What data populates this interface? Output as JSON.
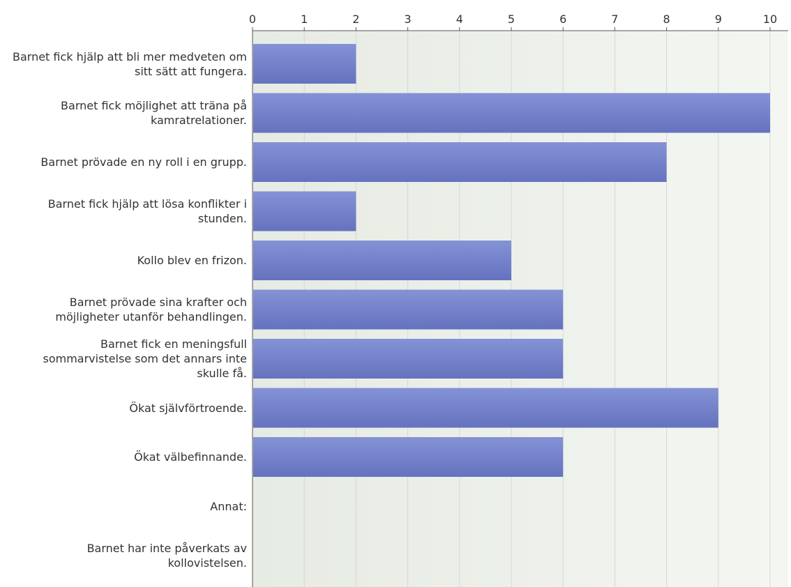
{
  "chart_data": {
    "type": "bar",
    "orientation": "horizontal",
    "categories": [
      "Barnet fick hjälp att bli mer medveten om sitt sätt att fungera.",
      "Barnet fick möjlighet att träna på kamratrelationer.",
      "Barnet prövade en ny roll i en grupp.",
      "Barnet fick hjälp att lösa konflikter i stunden.",
      "Kollo blev en frizon.",
      "Barnet prövade sina krafter och möjligheter utanför behandlingen.",
      "Barnet fick en meningsfull sommarvistelse som det annars inte skulle få.",
      "Ökat självförtroende.",
      "Ökat välbefinnande.",
      "Annat:",
      "Barnet har inte påverkats av kollovistelsen."
    ],
    "values": [
      2,
      10,
      8,
      2,
      5,
      6,
      6,
      9,
      6,
      0,
      0
    ],
    "xlim": [
      0,
      10
    ],
    "x_ticks": [
      "0",
      "1",
      "2",
      "3",
      "4",
      "5",
      "6",
      "7",
      "8",
      "9",
      "10"
    ],
    "x_axis_position": "top",
    "grid": true,
    "legend": "none",
    "colors": {
      "bar_top": "#8492d6",
      "bar_bottom": "#6573bf",
      "plot_bg_left": "#e6ebe3",
      "plot_bg_right": "#f4f6f2",
      "grid": "#d4d9d0",
      "axis": "#555555",
      "text": "#333333"
    }
  }
}
